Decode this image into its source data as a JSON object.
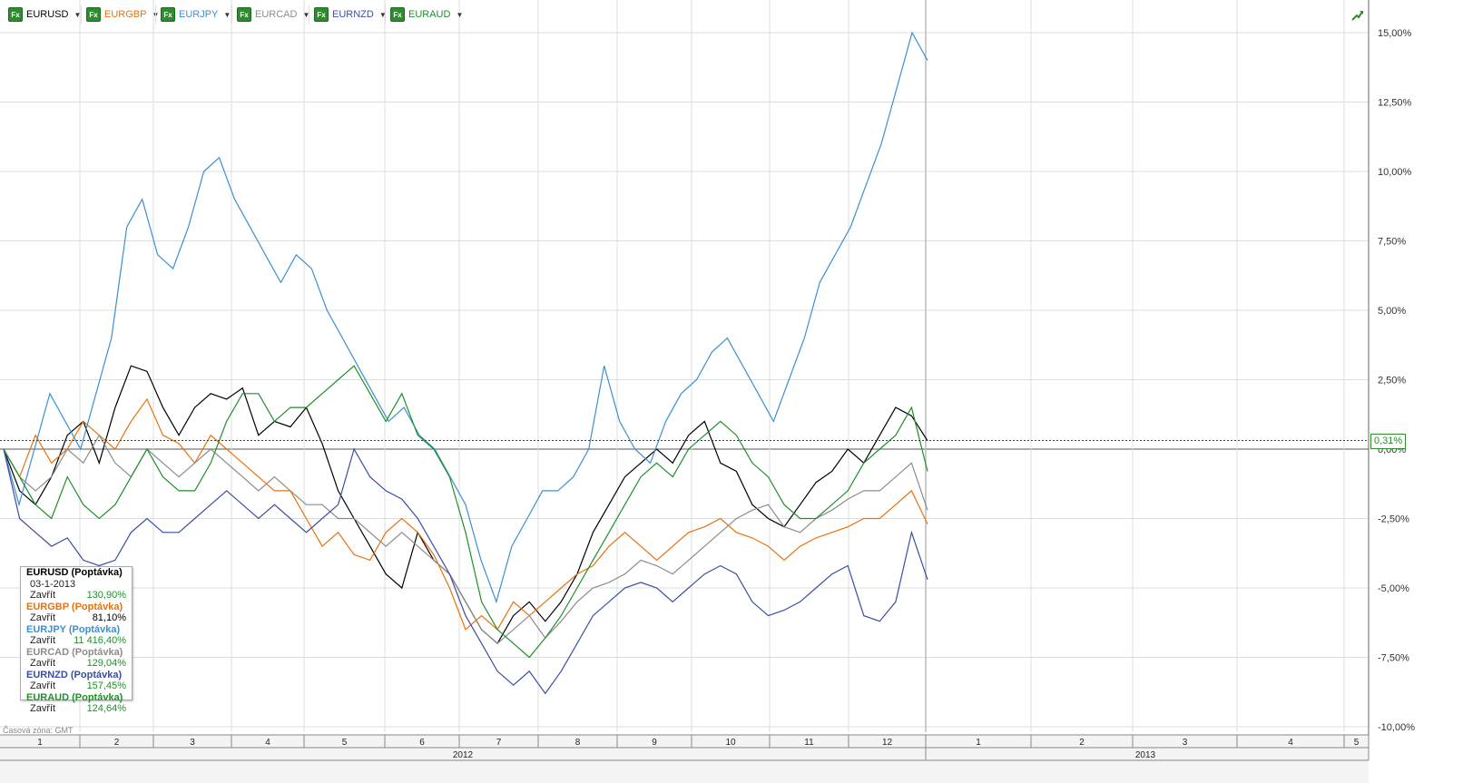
{
  "toolbar": {
    "symbols": [
      {
        "label": "EURUSD",
        "color": "#000000"
      },
      {
        "label": "EURGBP",
        "color": "#e8720c"
      },
      {
        "label": "EURJPY",
        "color": "#3d8fd1"
      },
      {
        "label": "EURCAD",
        "color": "#8c8c8c"
      },
      {
        "label": "EURNZD",
        "color": "#3a4ea3"
      },
      {
        "label": "EURAUD",
        "color": "#1f8f2a"
      }
    ],
    "fx_icon": "Fx",
    "trend_icon": "trend-up-icon"
  },
  "legend": {
    "date": "03-1-2013",
    "close_label": "Zavřít",
    "items": [
      {
        "name": "EURUSD (Poptávka)",
        "value": "130,90%",
        "name_color": "#000000",
        "value_color": "#1f8f2a"
      },
      {
        "name": "EURGBP (Poptávka)",
        "value": "81,10%",
        "name_color": "#e8720c",
        "value_color": "#000000"
      },
      {
        "name": "EURJPY (Poptávka)",
        "value": "11 416,40%",
        "name_color": "#3d8fd1",
        "value_color": "#1f8f2a"
      },
      {
        "name": "EURCAD (Poptávka)",
        "value": "129,04%",
        "name_color": "#8c8c8c",
        "value_color": "#1f8f2a"
      },
      {
        "name": "EURNZD (Poptávka)",
        "value": "157,45%",
        "name_color": "#3a4ea3",
        "value_color": "#1f8f2a"
      },
      {
        "name": "EURAUD (Poptávka)",
        "value": "124,64%",
        "name_color": "#1f8f2a",
        "value_color": "#1f8f2a"
      }
    ]
  },
  "timezone": "Časová zóna: GMT",
  "last_value_badge": "0,31%",
  "chart_data": {
    "type": "line",
    "y_unit": "%",
    "ylim": [
      -10,
      16
    ],
    "y_ticks": [
      15,
      12.5,
      10,
      7.5,
      5,
      2.5,
      0,
      -2.5,
      -5,
      -7.5,
      -10
    ],
    "y_tick_labels": [
      "15,00%",
      "12,50%",
      "10,00%",
      "7,50%",
      "5,00%",
      "2,50%",
      "0,00%",
      "-2,50%",
      "-5,00%",
      "-7,50%",
      "-10,00%"
    ],
    "x_month_labels": [
      "1",
      "2",
      "3",
      "4",
      "5",
      "6",
      "7",
      "8",
      "9",
      "10",
      "11",
      "12",
      "1",
      "2",
      "3",
      "4",
      "5"
    ],
    "x_year_labels": [
      "2012",
      "2013"
    ],
    "reference_line": 0.31,
    "grid": true,
    "series": [
      {
        "name": "EURUSD",
        "color": "#000000",
        "values": [
          0,
          -1.5,
          -2,
          -1,
          0.5,
          1,
          -0.5,
          1.5,
          3,
          2.8,
          1.5,
          0.5,
          1.5,
          2,
          1.8,
          2.2,
          0.5,
          1,
          0.8,
          1.5,
          0.2,
          -1.5,
          -2.5,
          -3.5,
          -4.5,
          -5,
          -3,
          -4,
          -4.5,
          -5.5,
          -6.5,
          -7,
          -6,
          -5.5,
          -6.2,
          -5.5,
          -4.5,
          -3,
          -2,
          -1,
          -0.5,
          0,
          -0.5,
          0.5,
          1,
          -0.5,
          -0.8,
          -2,
          -2.5,
          -2.8,
          -2,
          -1.2,
          -0.8,
          0,
          -0.5,
          0.5,
          1.5,
          1.2,
          0.3
        ]
      },
      {
        "name": "EURGBP",
        "color": "#e8720c",
        "values": [
          0,
          -1,
          0.5,
          -0.5,
          0,
          1,
          0.5,
          0,
          1,
          1.8,
          0.5,
          0.2,
          -0.5,
          0.5,
          0,
          -0.5,
          -1,
          -1.5,
          -1.5,
          -2.5,
          -3.5,
          -3,
          -3.8,
          -4,
          -3,
          -2.5,
          -3,
          -3.8,
          -5,
          -6.5,
          -6,
          -6.5,
          -5.5,
          -6,
          -5.5,
          -5,
          -4.5,
          -4.2,
          -3.5,
          -3,
          -3.5,
          -4,
          -3.5,
          -3,
          -2.8,
          -2.5,
          -3,
          -3.2,
          -3.5,
          -4,
          -3.5,
          -3.2,
          -3,
          -2.8,
          -2.5,
          -2.5,
          -2,
          -1.5,
          -2.7
        ]
      },
      {
        "name": "EURJPY",
        "color": "#3d8fd1",
        "values": [
          0,
          -2,
          0,
          2,
          1,
          0,
          2,
          4,
          8,
          9,
          7,
          6.5,
          8,
          10,
          10.5,
          9,
          8,
          7,
          6,
          7,
          6.5,
          5,
          4,
          3,
          2,
          1,
          1.5,
          0.5,
          0,
          -1,
          -2,
          -4,
          -5.5,
          -3.5,
          -2.5,
          -1.5,
          -1.5,
          -1,
          0,
          3,
          1,
          0,
          -0.5,
          1,
          2,
          2.5,
          3.5,
          4,
          3,
          2,
          1,
          2.5,
          4,
          6,
          7,
          8,
          9.5,
          11,
          13,
          15,
          14
        ]
      },
      {
        "name": "EURCAD",
        "color": "#8c8c8c",
        "values": [
          0,
          -1,
          -1.5,
          -1,
          0,
          -0.5,
          0.5,
          -0.5,
          -1,
          0,
          -0.5,
          -1,
          -0.5,
          0,
          -0.5,
          -1,
          -1.5,
          -1,
          -1.5,
          -2,
          -2,
          -2.5,
          -2.5,
          -3,
          -3.5,
          -3,
          -3.5,
          -4,
          -4.5,
          -5.5,
          -6.5,
          -7,
          -6.5,
          -6,
          -6.8,
          -6.2,
          -5.5,
          -5,
          -4.8,
          -4.5,
          -4,
          -4.2,
          -4.5,
          -4,
          -3.5,
          -3,
          -2.5,
          -2.2,
          -2,
          -2.8,
          -3,
          -2.5,
          -2.2,
          -1.8,
          -1.5,
          -1.5,
          -1,
          -0.5,
          -2.2
        ]
      },
      {
        "name": "EURNZD",
        "color": "#3a4ea3",
        "values": [
          0,
          -2.5,
          -3,
          -3.5,
          -3.2,
          -4,
          -4.2,
          -4,
          -3,
          -2.5,
          -3,
          -3,
          -2.5,
          -2,
          -1.5,
          -2,
          -2.5,
          -2,
          -2.5,
          -3,
          -2.5,
          -2,
          0,
          -1,
          -1.5,
          -1.8,
          -2.5,
          -3.5,
          -4.5,
          -6,
          -7,
          -8,
          -8.5,
          -8,
          -8.8,
          -8,
          -7,
          -6,
          -5.5,
          -5,
          -4.8,
          -5,
          -5.5,
          -5,
          -4.5,
          -4.2,
          -4.5,
          -5.5,
          -6,
          -5.8,
          -5.5,
          -5,
          -4.5,
          -4.2,
          -6,
          -6.2,
          -5.5,
          -3,
          -4.7
        ]
      },
      {
        "name": "EURAUD",
        "color": "#1f8f2a",
        "values": [
          0,
          -1,
          -2,
          -2.5,
          -1,
          -2,
          -2.5,
          -2,
          -1,
          0,
          -1,
          -1.5,
          -1.5,
          -0.5,
          1,
          2,
          2,
          1,
          1.5,
          1.5,
          2,
          2.5,
          3,
          2,
          1,
          2,
          0.5,
          0,
          -1,
          -3,
          -5.5,
          -6.5,
          -7,
          -7.5,
          -6.8,
          -6,
          -5,
          -4,
          -3,
          -2,
          -1,
          -0.5,
          -1,
          0,
          0.5,
          1,
          0.5,
          -0.5,
          -1,
          -2,
          -2.5,
          -2.5,
          -2,
          -1.5,
          -0.5,
          0,
          0.5,
          1.5,
          -0.8
        ]
      }
    ]
  }
}
